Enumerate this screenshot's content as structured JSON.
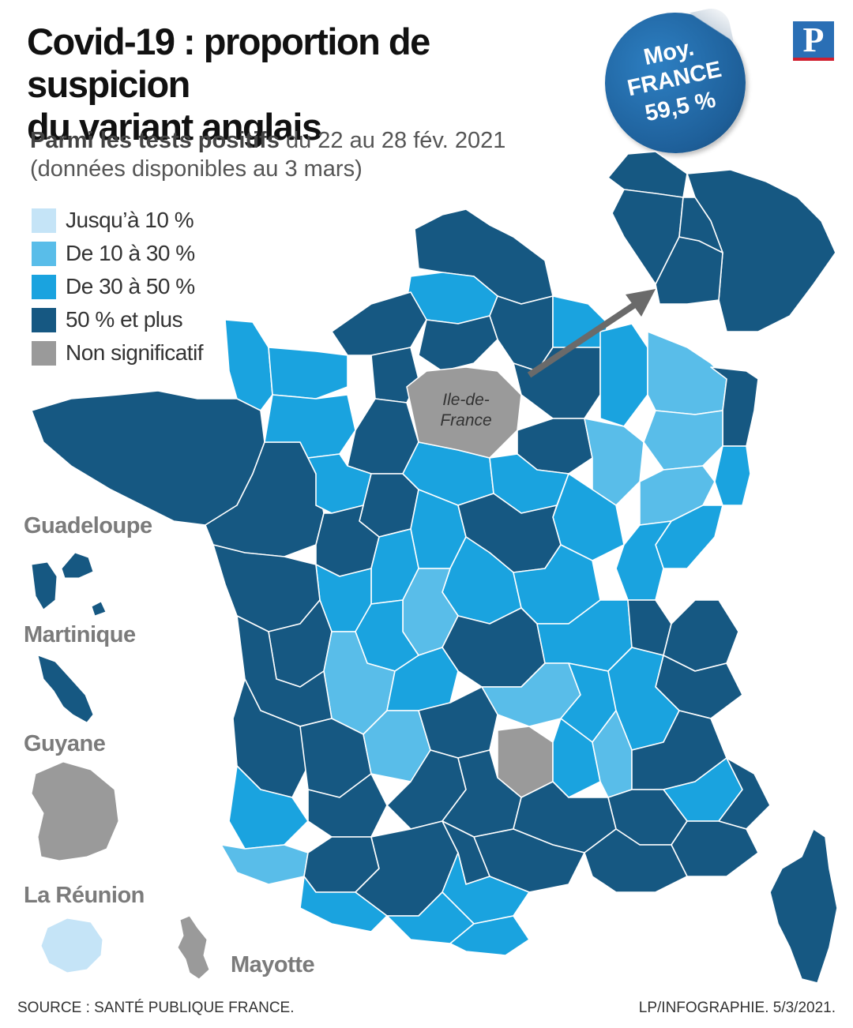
{
  "title": "Covid-19 : proportion de suspicion du variant anglais",
  "subtitle_bold": "Parmi les tests positifs",
  "subtitle_rest": " du 22 au 28 fév. 2021",
  "subtitle_line2": "(données disponibles au 3 mars)",
  "legend": [
    {
      "label": "Jusqu’à 10 %",
      "color": "#c5e4f7"
    },
    {
      "label": "De 10 à 30 %",
      "color": "#59bde9"
    },
    {
      "label": "De 30 à 50 %",
      "color": "#1aa3df"
    },
    {
      "label": "50 % et plus",
      "color": "#165882"
    },
    {
      "label": "Non significatif",
      "color": "#9a9a9a"
    }
  ],
  "average": {
    "line1": "Moy.",
    "line2": "FRANCE",
    "line3": "59,5 %"
  },
  "logo": "P",
  "idf_label": "Ile-de-France",
  "overseas": {
    "guadeloupe": "Guadeloupe",
    "martinique": "Martinique",
    "guyane": "Guyane",
    "reunion": "La Réunion",
    "mayotte": "Mayotte"
  },
  "source": "SOURCE : SANTÉ PUBLIQUE FRANCE.",
  "credit": "LP/INFOGRAPHIE. 5/3/2021.",
  "colors": {
    "c1": "#c5e4f7",
    "c2": "#59bde9",
    "c3": "#1aa3df",
    "c4": "#165882",
    "ns": "#9a9a9a",
    "border": "#ffffff"
  }
}
